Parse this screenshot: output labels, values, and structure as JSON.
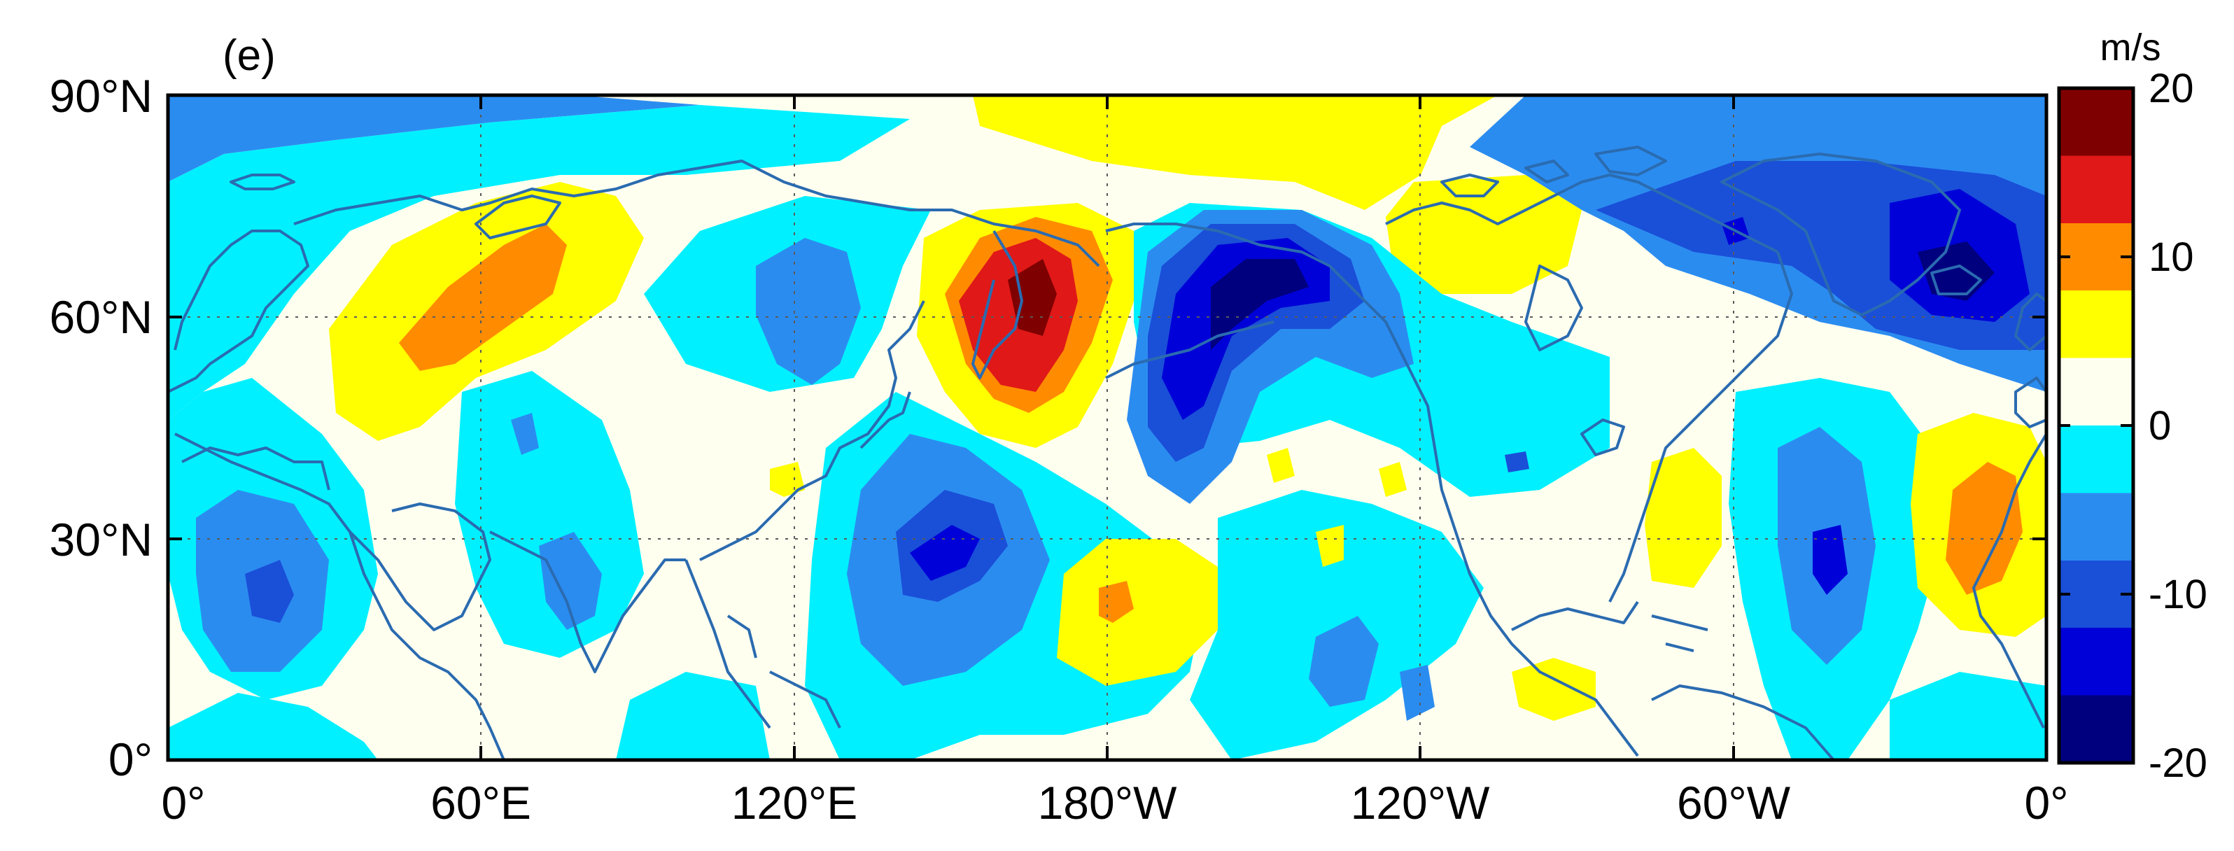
{
  "panel_label": "(e)",
  "colorbar": {
    "unit": "m/s",
    "ticks": [
      "20",
      "10",
      "0",
      "-10",
      "-20"
    ],
    "range": [
      -20,
      20
    ],
    "colors": [
      "#00007f",
      "#0000d8",
      "#1a4fd8",
      "#2b8cf0",
      "#00f0ff",
      "#fffff0",
      "#ffff00",
      "#ff8c00",
      "#e01818",
      "#7f0000"
    ]
  },
  "axes": {
    "x_ticks": [
      "0°",
      "60°E",
      "120°E",
      "180°W",
      "120°W",
      "60°W",
      "0°"
    ],
    "y_ticks": [
      "90°N",
      "60°N",
      "30°N",
      "0°"
    ]
  },
  "levels": {
    "deep_blue": "#00007f",
    "dark_blue": "#0000d8",
    "blue": "#1a4fd8",
    "mid_blue": "#2b8cf0",
    "cyan": "#00f0ff",
    "neutral": "#fffff0",
    "yellow": "#ffff00",
    "orange": "#ff8c00",
    "red": "#e01818",
    "dark_red": "#7f0000"
  }
}
